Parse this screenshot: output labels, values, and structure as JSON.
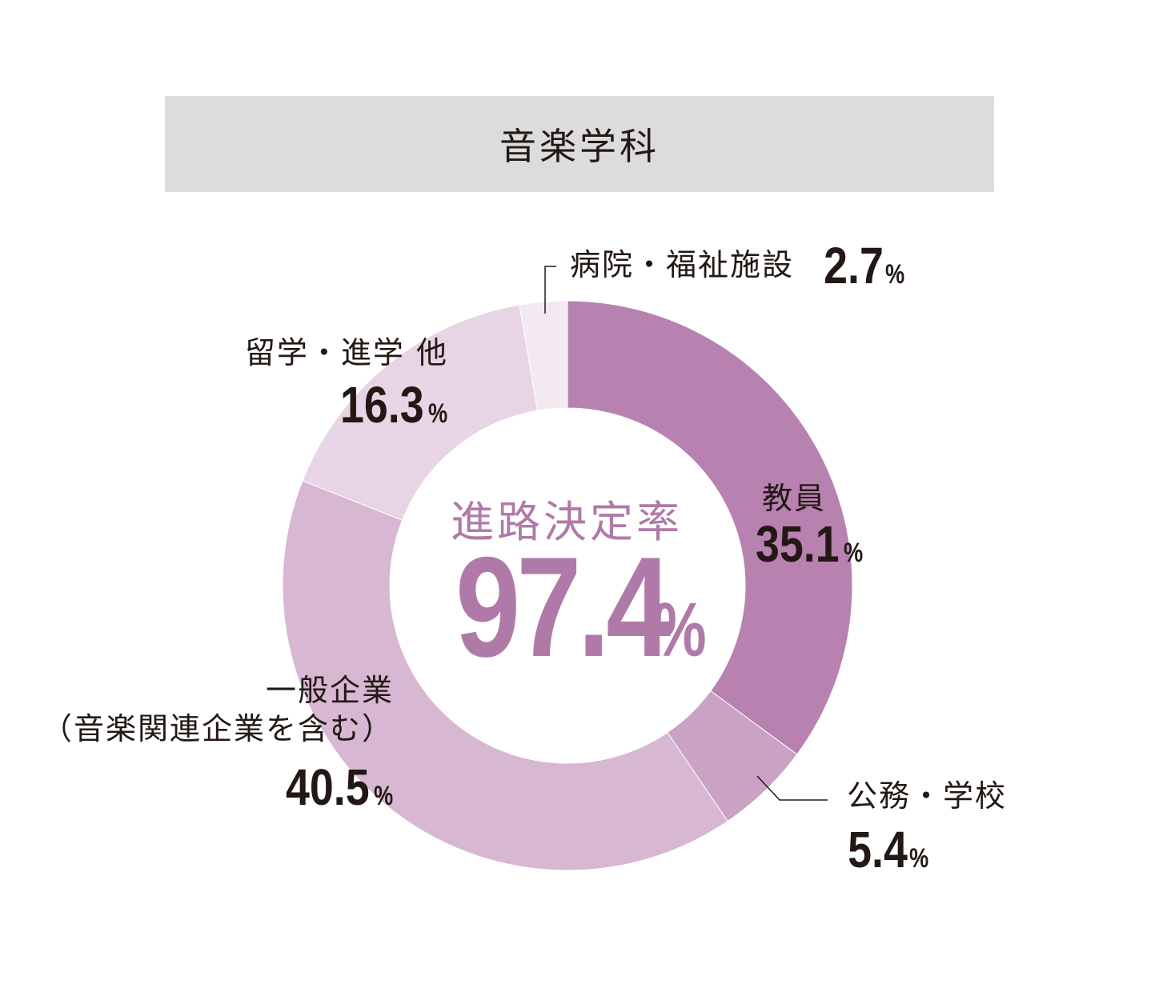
{
  "header": {
    "title": "音楽学科"
  },
  "center": {
    "label": "進路決定率",
    "value": "97.4",
    "unit": "%"
  },
  "colors": {
    "accent": "#b07aa8",
    "title_bg": "#dcdcdc",
    "text": "#231815"
  },
  "chart_data": {
    "type": "pie",
    "title": "音楽学科",
    "unit": "%",
    "categories": [
      "教員",
      "公務・学校",
      "一般企業（音楽関連企業を含む）",
      "留学・進学 他",
      "病院・福祉施設"
    ],
    "values": [
      35.1,
      5.4,
      40.5,
      16.3,
      2.7
    ],
    "colors": [
      "#b781b0",
      "#c9a2c4",
      "#d8b7d3",
      "#e7d4e4",
      "#f3e9f1"
    ],
    "labels": [
      {
        "name": "教員",
        "value": "35.1",
        "unit": "%"
      },
      {
        "name": "公務・学校",
        "value": "5.4",
        "unit": "%"
      },
      {
        "name": "一般企業",
        "sub": "（音楽関連企業を含む）",
        "value": "40.5",
        "unit": "%"
      },
      {
        "name": "留学・進学 他",
        "value": "16.3",
        "unit": "%"
      },
      {
        "name": "病院・福祉施設",
        "value": "2.7",
        "unit": "%"
      }
    ]
  }
}
